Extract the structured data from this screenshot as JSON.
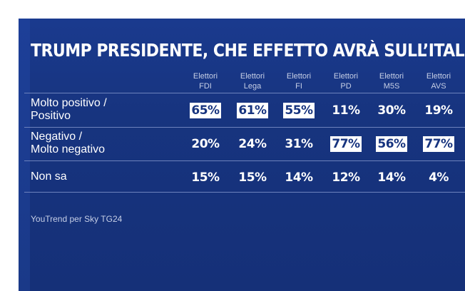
{
  "title": "TRUMP PRESIDENTE, CHE EFFETTO AVRÀ SULL’ITALIA?",
  "source": "YouTrend per Sky TG24",
  "colors": {
    "background": "#17347f",
    "highlight_box": "#ffffff",
    "text": "#ffffff"
  },
  "chart_data": {
    "type": "table",
    "title": "TRUMP PRESIDENTE, CHE EFFETTO AVRÀ SULL’ITALIA?",
    "columns": [
      {
        "line1": "Elettori",
        "line2": "FDI"
      },
      {
        "line1": "Elettori",
        "line2": "Lega"
      },
      {
        "line1": "Elettori",
        "line2": "FI"
      },
      {
        "line1": "Elettori",
        "line2": "PD"
      },
      {
        "line1": "Elettori",
        "line2": "M5S"
      },
      {
        "line1": "Elettori",
        "line2": "AVS"
      }
    ],
    "rows": [
      {
        "label_line1": "Molto positivo /",
        "label_line2": "Positivo",
        "values": [
          "65%",
          "61%",
          "55%",
          "11%",
          "30%",
          "19%"
        ],
        "highlight": [
          true,
          true,
          true,
          false,
          false,
          false
        ]
      },
      {
        "label_line1": "Negativo /",
        "label_line2": "Molto negativo",
        "values": [
          "20%",
          "24%",
          "31%",
          "77%",
          "56%",
          "77%"
        ],
        "highlight": [
          false,
          false,
          false,
          true,
          true,
          true
        ]
      },
      {
        "label_line1": "Non sa",
        "label_line2": "",
        "values": [
          "15%",
          "15%",
          "14%",
          "12%",
          "14%",
          "4%"
        ],
        "highlight": [
          false,
          false,
          false,
          false,
          false,
          false
        ]
      }
    ]
  }
}
